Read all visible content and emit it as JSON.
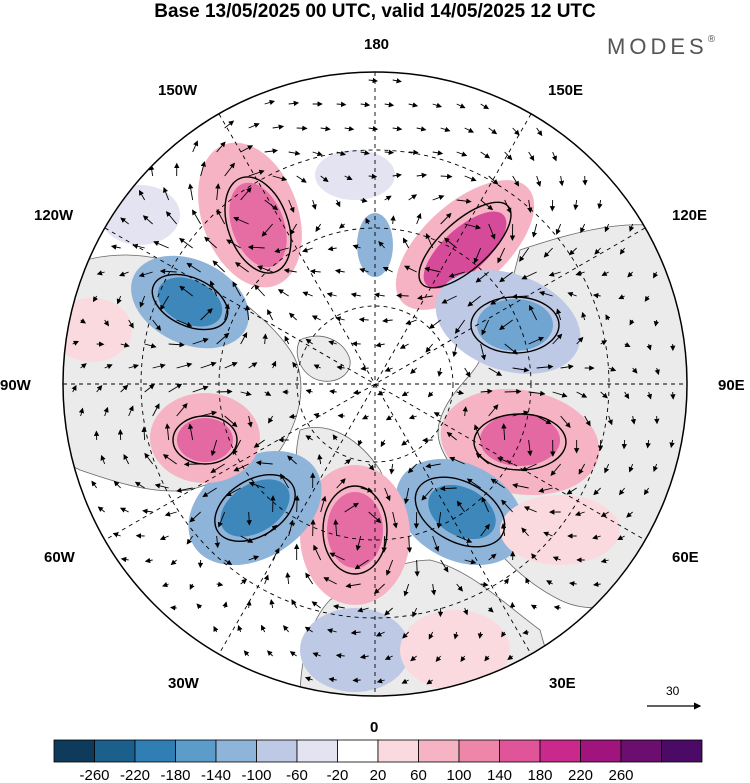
{
  "title": "Base 13/05/2025 00 UTC, valid 14/05/2025 12 UTC",
  "brand": "MODES",
  "brand_mark": "®",
  "longitude_labels": {
    "top": "180",
    "bottom": "0",
    "left": "90W",
    "right": "90E",
    "lon150w": "150W",
    "lon150e": "150E",
    "lon120w": "120W",
    "lon120e": "120E",
    "lon60w": "60W",
    "lon60e": "60E",
    "lon30w": "30W",
    "lon30e": "30E"
  },
  "reference_vector_label": "30",
  "colorbar": {
    "ticks": [
      "-260",
      "-220",
      "-180",
      "-140",
      "-100",
      "-60",
      "-20",
      "20",
      "60",
      "100",
      "140",
      "180",
      "220",
      "260"
    ],
    "colors": [
      "#0e3a5c",
      "#1b5f8c",
      "#2f7fb5",
      "#5b9ccb",
      "#8fb4d9",
      "#bec9e5",
      "#e3e3f2",
      "#ffffff",
      "#fadadf",
      "#f5b3c3",
      "#ee86aa",
      "#e0559a",
      "#c9288c",
      "#a0157d",
      "#6b0e6f",
      "#4a0a66"
    ]
  },
  "colors": {
    "land": "#ebebeb",
    "coast": "#555555",
    "grid": "#000000"
  }
}
